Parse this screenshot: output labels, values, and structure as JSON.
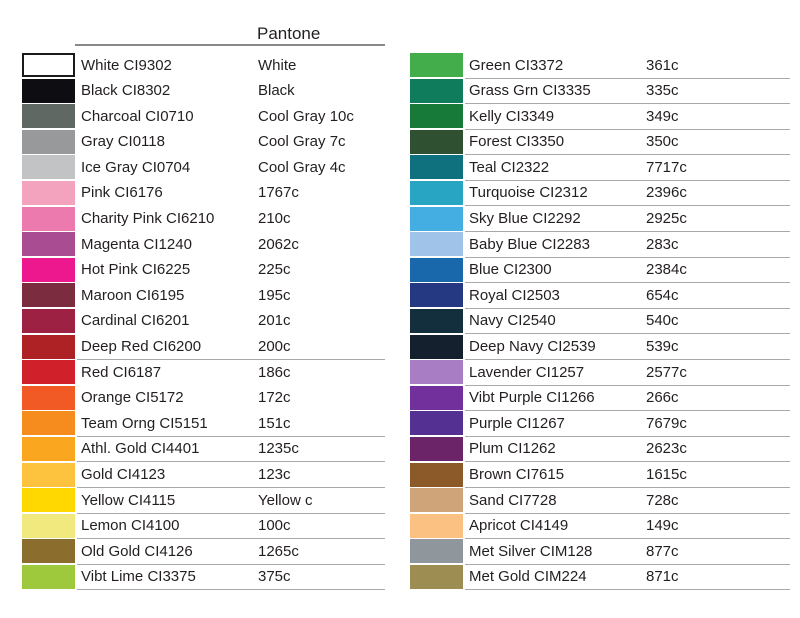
{
  "header": {
    "pantone_label": "Pantone"
  },
  "colors": {
    "text": "#231f20",
    "row_line": "#a7a9ac",
    "header_line": "#88898b",
    "swatch_border": "#1a1a1a"
  },
  "columns": {
    "left": {
      "rows": [
        {
          "name": "White",
          "code": "CI9302",
          "pantone": "White",
          "color": "#ffffff",
          "bordered": true,
          "underline": false
        },
        {
          "name": "Black",
          "code": "CI8302",
          "pantone": "Black",
          "color": "#0e0e12",
          "bordered": false,
          "underline": false
        },
        {
          "name": "Charcoal",
          "code": "CI0710",
          "pantone": "Cool Gray 10c",
          "color": "#5f6862",
          "bordered": false,
          "underline": false
        },
        {
          "name": "Gray",
          "code": "CI0118",
          "pantone": "Cool Gray 7c",
          "color": "#97999b",
          "bordered": false,
          "underline": false
        },
        {
          "name": "Ice Gray",
          "code": "CI0704",
          "pantone": "Cool Gray 4c",
          "color": "#c1c3c5",
          "bordered": false,
          "underline": false
        },
        {
          "name": "Pink",
          "code": "CI6176",
          "pantone": "1767c",
          "color": "#f4a3be",
          "bordered": false,
          "underline": false
        },
        {
          "name": "Charity Pink",
          "code": "CI6210",
          "pantone": "210c",
          "color": "#ec7aae",
          "bordered": false,
          "underline": false
        },
        {
          "name": "Magenta",
          "code": "CI1240",
          "pantone": "2062c",
          "color": "#a94c92",
          "bordered": false,
          "underline": false
        },
        {
          "name": "Hot Pink",
          "code": "CI6225",
          "pantone": "225c",
          "color": "#ee188e",
          "bordered": false,
          "underline": false
        },
        {
          "name": "Maroon",
          "code": "CI6195",
          "pantone": "195c",
          "color": "#7c2c3f",
          "bordered": false,
          "underline": false
        },
        {
          "name": "Cardinal",
          "code": "CI6201",
          "pantone": "201c",
          "color": "#9d2143",
          "bordered": false,
          "underline": false
        },
        {
          "name": "Deep Red",
          "code": "CI6200",
          "pantone": "200c",
          "color": "#ae2125",
          "bordered": false,
          "underline": true
        },
        {
          "name": "Red",
          "code": "CI6187",
          "pantone": "186c",
          "color": "#d0202a",
          "bordered": false,
          "underline": false
        },
        {
          "name": "Orange",
          "code": "CI5172",
          "pantone": "172c",
          "color": "#f15a24",
          "bordered": false,
          "underline": false
        },
        {
          "name": "Team Orng",
          "code": "CI5151",
          "pantone": "151c",
          "color": "#f68b1e",
          "bordered": false,
          "underline": true
        },
        {
          "name": "Athl. Gold",
          "code": "CI4401",
          "pantone": "1235c",
          "color": "#faa61e",
          "bordered": false,
          "underline": true
        },
        {
          "name": "Gold",
          "code": "CI4123",
          "pantone": "123c",
          "color": "#fdc23e",
          "bordered": false,
          "underline": true
        },
        {
          "name": "Yellow",
          "code": "CI4115",
          "pantone": "Yellow c",
          "color": "#fed800",
          "bordered": false,
          "underline": true
        },
        {
          "name": "Lemon",
          "code": "CI4100",
          "pantone": "100c",
          "color": "#f1e97d",
          "bordered": false,
          "underline": true
        },
        {
          "name": "Old Gold",
          "code": "CI4126",
          "pantone": "1265c",
          "color": "#8b6e2e",
          "bordered": false,
          "underline": true
        },
        {
          "name": "Vibt Lime",
          "code": "CI3375",
          "pantone": "375c",
          "color": "#9fc93c",
          "bordered": false,
          "underline": true
        }
      ]
    },
    "right": {
      "rows": [
        {
          "name": "Green",
          "code": "CI3372",
          "pantone": "361c",
          "color": "#42ad4a",
          "bordered": false,
          "underline": true
        },
        {
          "name": "Grass Grn",
          "code": "CI3335",
          "pantone": "335c",
          "color": "#0f7d5b",
          "bordered": false,
          "underline": true
        },
        {
          "name": "Kelly",
          "code": "CI3349",
          "pantone": "349c",
          "color": "#187a39",
          "bordered": false,
          "underline": true
        },
        {
          "name": "Forest",
          "code": "CI3350",
          "pantone": "350c",
          "color": "#2f5132",
          "bordered": false,
          "underline": true
        },
        {
          "name": "Teal",
          "code": "CI2322",
          "pantone": "7717c",
          "color": "#10717e",
          "bordered": false,
          "underline": true
        },
        {
          "name": "Turquoise",
          "code": "CI2312",
          "pantone": "2396c",
          "color": "#28a5c2",
          "bordered": false,
          "underline": true
        },
        {
          "name": "Sky Blue",
          "code": "CI2292",
          "pantone": "2925c",
          "color": "#44ade2",
          "bordered": false,
          "underline": true
        },
        {
          "name": "Baby Blue",
          "code": "CI2283",
          "pantone": "283c",
          "color": "#a0c3e9",
          "bordered": false,
          "underline": true
        },
        {
          "name": "Blue",
          "code": "CI2300",
          "pantone": "2384c",
          "color": "#1968ac",
          "bordered": false,
          "underline": true
        },
        {
          "name": "Royal",
          "code": "CI2503",
          "pantone": "654c",
          "color": "#253982",
          "bordered": false,
          "underline": true
        },
        {
          "name": "Navy",
          "code": "CI2540",
          "pantone": "540c",
          "color": "#132f3e",
          "bordered": false,
          "underline": true
        },
        {
          "name": "Deep Navy",
          "code": "CI2539",
          "pantone": "539c",
          "color": "#14202d",
          "bordered": false,
          "underline": true
        },
        {
          "name": "Lavender",
          "code": "CI1257",
          "pantone": "2577c",
          "color": "#a87dc3",
          "bordered": false,
          "underline": true
        },
        {
          "name": "Vibt Purple",
          "code": "CI1266",
          "pantone": "266c",
          "color": "#71309c",
          "bordered": false,
          "underline": true
        },
        {
          "name": "Purple",
          "code": "CI1267",
          "pantone": "7679c",
          "color": "#543092",
          "bordered": false,
          "underline": true
        },
        {
          "name": "Plum",
          "code": "CI1262",
          "pantone": "2623c",
          "color": "#6c2468",
          "bordered": false,
          "underline": true
        },
        {
          "name": "Brown",
          "code": "CI7615",
          "pantone": "1615c",
          "color": "#8c5a29",
          "bordered": false,
          "underline": true
        },
        {
          "name": "Sand",
          "code": "CI7728",
          "pantone": "728c",
          "color": "#cfa478",
          "bordered": false,
          "underline": true
        },
        {
          "name": "Apricot",
          "code": "CI4149",
          "pantone": "149c",
          "color": "#fbc183",
          "bordered": false,
          "underline": true
        },
        {
          "name": "Met Silver",
          "code": "CIM128",
          "pantone": "877c",
          "color": "#8f979d",
          "bordered": false,
          "underline": true
        },
        {
          "name": "Met Gold",
          "code": "CIM224",
          "pantone": "871c",
          "color": "#9d8d52",
          "bordered": false,
          "underline": true
        }
      ]
    }
  }
}
